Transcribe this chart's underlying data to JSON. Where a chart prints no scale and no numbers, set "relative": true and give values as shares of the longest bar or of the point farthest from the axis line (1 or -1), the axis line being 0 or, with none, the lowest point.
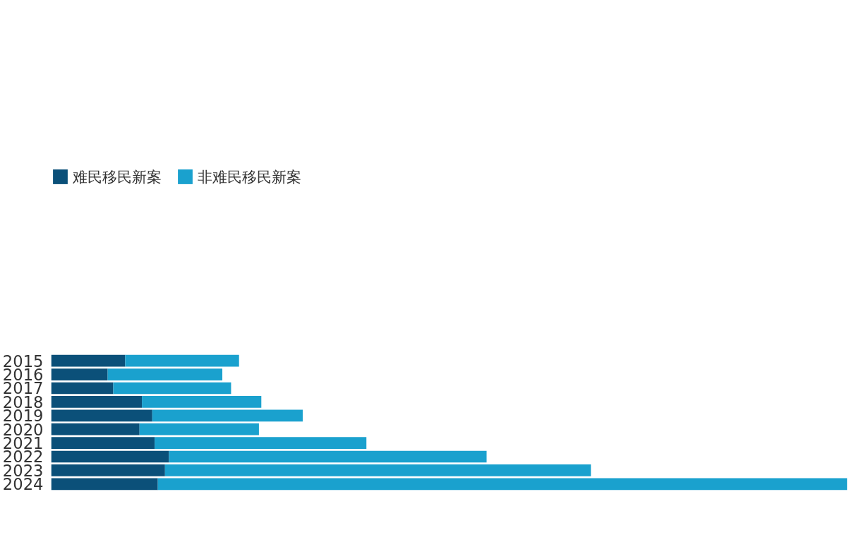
{
  "chart_data": {
    "type": "bar",
    "orientation": "horizontal",
    "stacked": true,
    "relative": true,
    "legend": "top left",
    "grid": false,
    "categories": [
      "2015",
      "2016",
      "2017",
      "2018",
      "2019",
      "2020",
      "2021",
      "2022",
      "2023",
      "2024"
    ],
    "series": [
      {
        "name": "难民移民新案",
        "color": "#0b5079",
        "values": [
          0.093,
          0.071,
          0.078,
          0.114,
          0.127,
          0.111,
          0.13,
          0.148,
          0.143,
          0.134
        ]
      },
      {
        "name": "非难民移民新案",
        "color": "#1aa1ce",
        "values": [
          0.143,
          0.144,
          0.148,
          0.15,
          0.189,
          0.15,
          0.266,
          0.399,
          0.535,
          0.866
        ]
      }
    ]
  }
}
